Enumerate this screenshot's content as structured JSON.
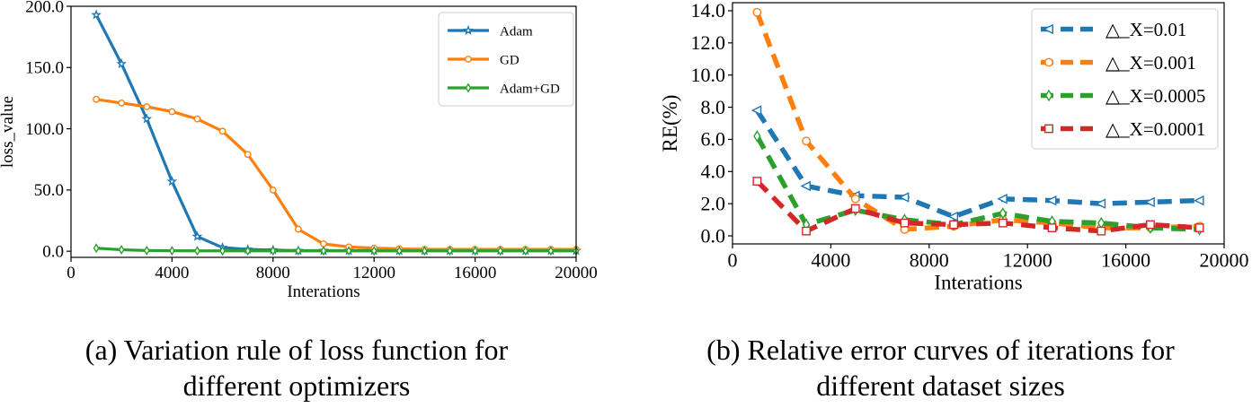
{
  "chart_data": [
    {
      "type": "line",
      "title": "",
      "xlabel": "Interations",
      "ylabel": "loss_value",
      "xlim": [
        0,
        20000
      ],
      "ylim": [
        -5,
        200
      ],
      "xticks": [
        0,
        4000,
        8000,
        12000,
        16000,
        20000
      ],
      "xtick_labels": [
        "0",
        "4000",
        "8000",
        "12000",
        "16000",
        "20000"
      ],
      "yticks": [
        0,
        50,
        100,
        150,
        200
      ],
      "ytick_labels": [
        "0.0",
        "50.0",
        "100.0",
        "150.0",
        "200.0"
      ],
      "legend_position": "top-right",
      "series": [
        {
          "name": "Adam",
          "color": "#1f77b4",
          "marker": "star",
          "x": [
            1000,
            2000,
            3000,
            4000,
            5000,
            6000,
            7000,
            8000,
            9000,
            10000,
            11000,
            12000,
            13000,
            14000,
            15000,
            16000,
            17000,
            18000,
            19000,
            20000
          ],
          "values": [
            193,
            153,
            108,
            57,
            12,
            3,
            1.5,
            1,
            0.5,
            0.5,
            0.5,
            0.5,
            0.5,
            0.5,
            0.5,
            0.5,
            0.5,
            0.5,
            0.5,
            0.5
          ]
        },
        {
          "name": "GD",
          "color": "#ff7f0e",
          "marker": "circle",
          "x": [
            1000,
            2000,
            3000,
            4000,
            5000,
            6000,
            7000,
            8000,
            9000,
            10000,
            11000,
            12000,
            13000,
            14000,
            15000,
            16000,
            17000,
            18000,
            19000,
            20000
          ],
          "values": [
            124,
            121,
            118,
            114,
            108,
            98,
            79,
            50,
            18,
            6,
            3.5,
            2.5,
            2,
            1.5,
            1.5,
            1.5,
            1.5,
            1.5,
            1.5,
            1.5
          ]
        },
        {
          "name": "Adam+GD",
          "color": "#2ca02c",
          "marker": "diamond",
          "x": [
            1000,
            2000,
            3000,
            4000,
            5000,
            6000,
            7000,
            8000,
            9000,
            10000,
            11000,
            12000,
            13000,
            14000,
            15000,
            16000,
            17000,
            18000,
            19000,
            20000
          ],
          "values": [
            2.5,
            1.2,
            0.6,
            0.4,
            0.3,
            0.3,
            0.3,
            0.3,
            0.3,
            0.3,
            0.3,
            0.3,
            0.3,
            0.3,
            0.3,
            0.3,
            0.3,
            0.3,
            0.3,
            0.3
          ]
        }
      ],
      "caption": [
        "(a)  Variation rule of loss function for",
        "different optimizers"
      ]
    },
    {
      "type": "line",
      "title": "",
      "xlabel": "Interations",
      "ylabel": "RE(%)",
      "xlim": [
        0,
        20000
      ],
      "ylim": [
        -0.5,
        14.5
      ],
      "xticks": [
        0,
        4000,
        8000,
        12000,
        16000,
        20000
      ],
      "xtick_labels": [
        "0",
        "4000",
        "8000",
        "12000",
        "16000",
        "20000"
      ],
      "yticks": [
        0,
        2,
        4,
        6,
        8,
        10,
        12,
        14
      ],
      "ytick_labels": [
        "0.0",
        "2.0",
        "4.0",
        "6.0",
        "8.0",
        "10.0",
        "12.0",
        "14.0"
      ],
      "legend_position": "top-right",
      "series": [
        {
          "name": "△_X=0.01",
          "color": "#1f77b4",
          "marker": "triangle-left",
          "x": [
            1000,
            3000,
            5000,
            7000,
            9000,
            11000,
            13000,
            15000,
            17000,
            19000
          ],
          "values": [
            7.8,
            3.1,
            2.5,
            2.4,
            1.2,
            2.3,
            2.2,
            2.0,
            2.1,
            2.2
          ]
        },
        {
          "name": "△_X=0.001",
          "color": "#ff7f0e",
          "marker": "circle",
          "x": [
            1000,
            3000,
            5000,
            7000,
            9000,
            11000,
            13000,
            15000,
            17000,
            19000
          ],
          "values": [
            13.9,
            5.9,
            2.3,
            0.4,
            0.6,
            1.0,
            0.8,
            0.5,
            0.5,
            0.6
          ]
        },
        {
          "name": "△_X=0.0005",
          "color": "#2ca02c",
          "marker": "diamond",
          "x": [
            1000,
            3000,
            5000,
            7000,
            9000,
            11000,
            13000,
            15000,
            17000,
            19000
          ],
          "values": [
            6.2,
            0.7,
            1.6,
            1.0,
            0.7,
            1.4,
            0.9,
            0.8,
            0.5,
            0.4
          ]
        },
        {
          "name": "△_X=0.0001",
          "color": "#d62728",
          "marker": "square",
          "x": [
            1000,
            3000,
            5000,
            7000,
            9000,
            11000,
            13000,
            15000,
            17000,
            19000
          ],
          "values": [
            3.4,
            0.3,
            1.7,
            0.8,
            0.7,
            0.8,
            0.5,
            0.3,
            0.7,
            0.5
          ]
        }
      ],
      "caption": [
        "(b)  Relative error curves of iterations for",
        "different dataset sizes"
      ]
    }
  ]
}
